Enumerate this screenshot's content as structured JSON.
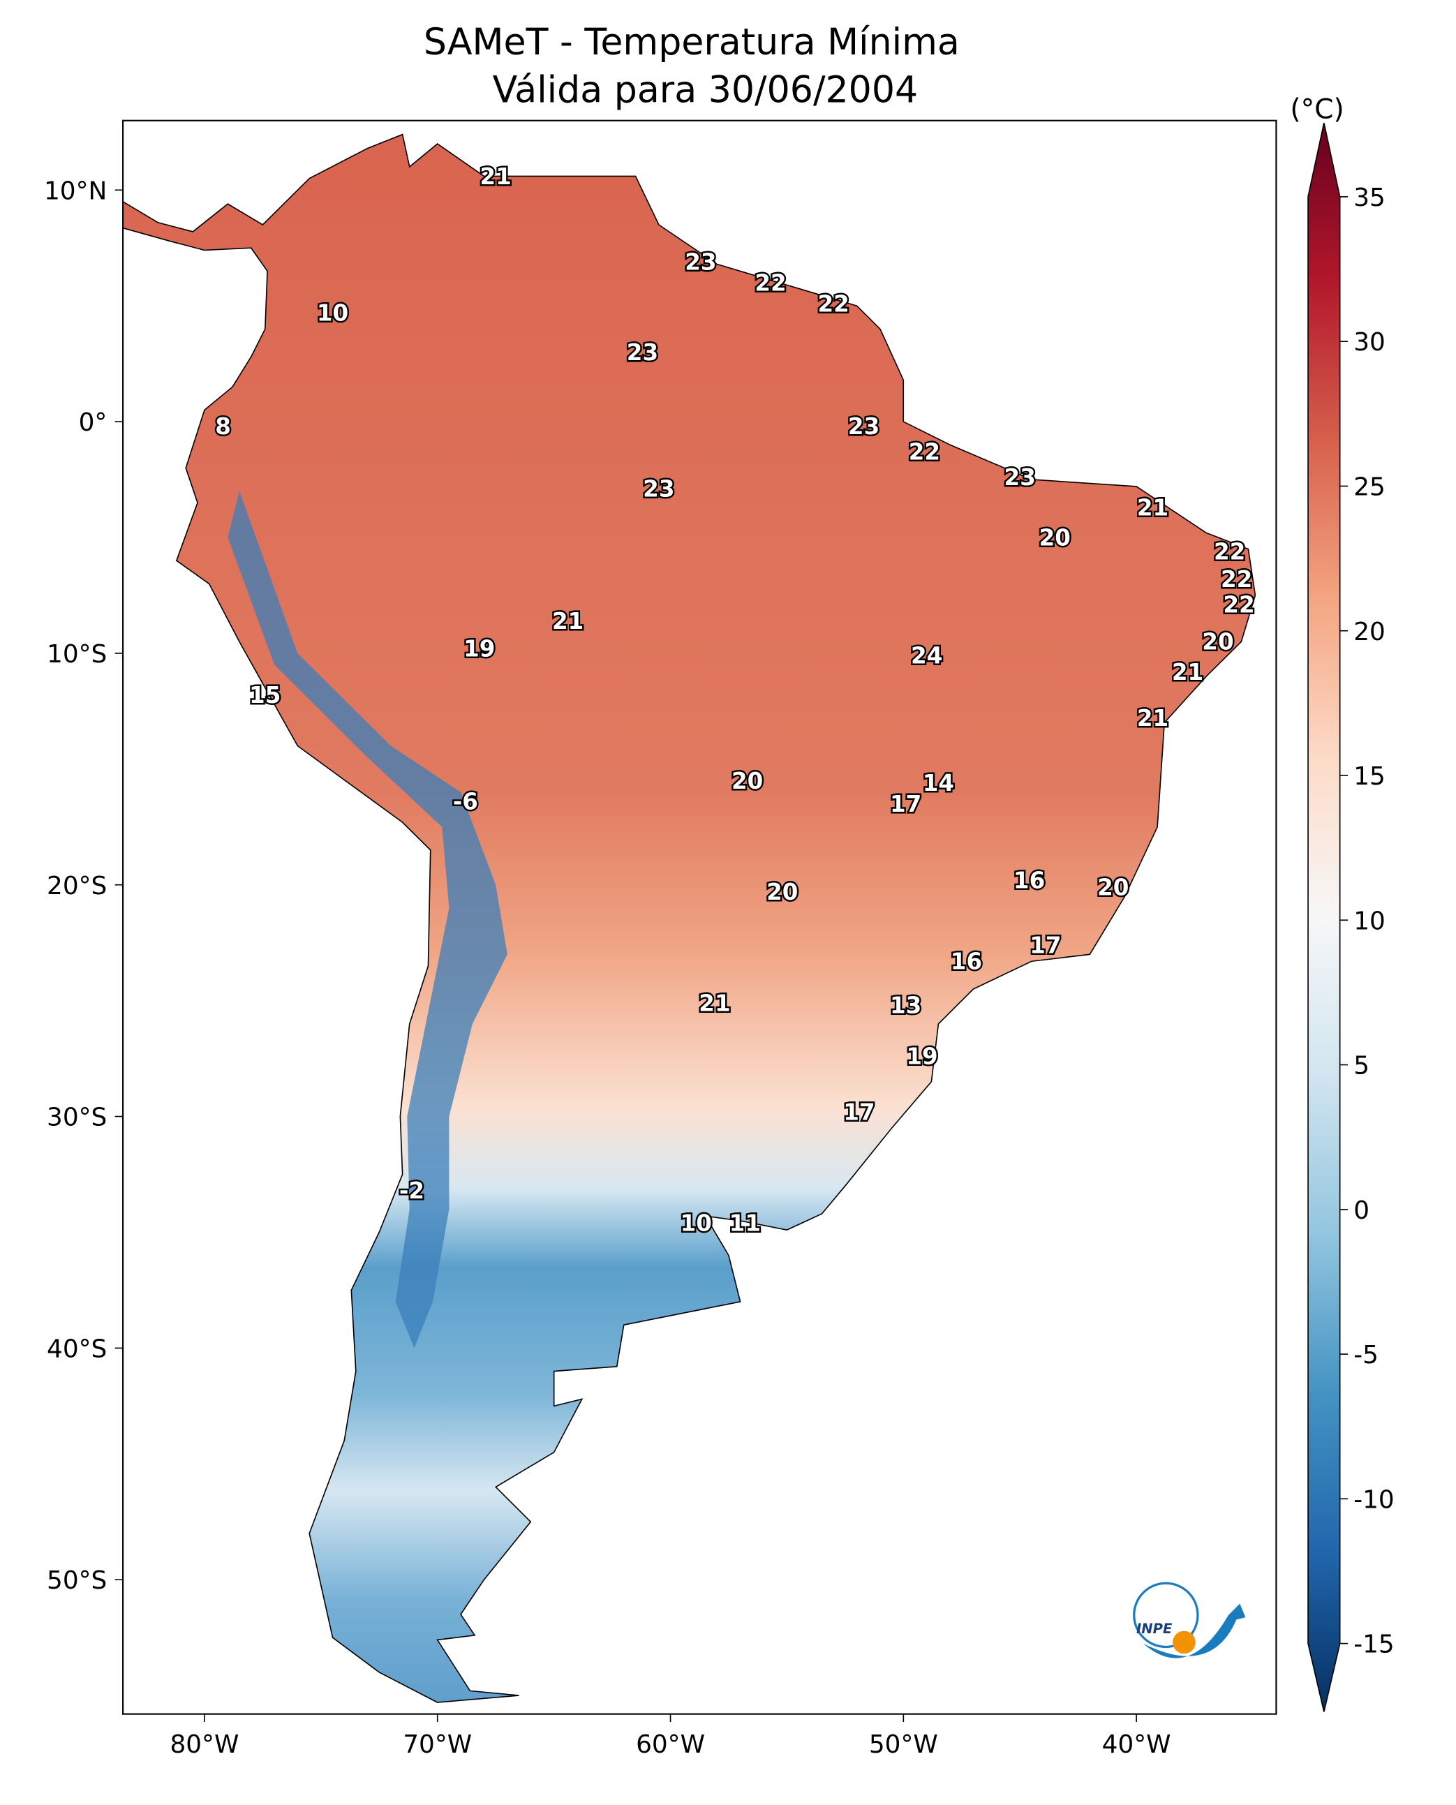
{
  "title": {
    "line1": "SAMeT - Temperatura Mínima",
    "line2": "Válida para 30/06/2004"
  },
  "map": {
    "lon_range": [
      -83.5,
      -34
    ],
    "lat_range": [
      -55.8,
      13
    ],
    "lon_ticks": [
      {
        "value": -80,
        "label": "80°W"
      },
      {
        "value": -70,
        "label": "70°W"
      },
      {
        "value": -60,
        "label": "60°W"
      },
      {
        "value": -50,
        "label": "50°W"
      },
      {
        "value": -40,
        "label": "40°W"
      }
    ],
    "lat_ticks": [
      {
        "value": 10,
        "label": "10°N"
      },
      {
        "value": 0,
        "label": "0°"
      },
      {
        "value": -10,
        "label": "10°S"
      },
      {
        "value": -20,
        "label": "20°S"
      },
      {
        "value": -30,
        "label": "30°S"
      },
      {
        "value": -40,
        "label": "40°S"
      },
      {
        "value": -50,
        "label": "50°S"
      }
    ],
    "labels": [
      {
        "text": "21",
        "lon": -67.5,
        "lat": 10.6
      },
      {
        "text": "10",
        "lon": -74.5,
        "lat": 4.7
      },
      {
        "text": "23",
        "lon": -58.7,
        "lat": 6.9
      },
      {
        "text": "22",
        "lon": -55.7,
        "lat": 6.0
      },
      {
        "text": "22",
        "lon": -53.0,
        "lat": 5.1
      },
      {
        "text": "23",
        "lon": -61.2,
        "lat": 3.0
      },
      {
        "text": "8",
        "lon": -79.2,
        "lat": -0.2
      },
      {
        "text": "23",
        "lon": -51.7,
        "lat": -0.2
      },
      {
        "text": "22",
        "lon": -49.1,
        "lat": -1.3
      },
      {
        "text": "23",
        "lon": -45.0,
        "lat": -2.4
      },
      {
        "text": "23",
        "lon": -60.5,
        "lat": -2.9
      },
      {
        "text": "21",
        "lon": -39.3,
        "lat": -3.7
      },
      {
        "text": "20",
        "lon": -43.5,
        "lat": -5.0
      },
      {
        "text": "22",
        "lon": -36.0,
        "lat": -5.6
      },
      {
        "text": "22",
        "lon": -35.7,
        "lat": -6.8
      },
      {
        "text": "22",
        "lon": -35.6,
        "lat": -7.9
      },
      {
        "text": "21",
        "lon": -64.4,
        "lat": -8.6
      },
      {
        "text": "20",
        "lon": -36.5,
        "lat": -9.5
      },
      {
        "text": "19",
        "lon": -68.2,
        "lat": -9.8
      },
      {
        "text": "24",
        "lon": -49.0,
        "lat": -10.1
      },
      {
        "text": "21",
        "lon": -37.8,
        "lat": -10.8
      },
      {
        "text": "15",
        "lon": -77.4,
        "lat": -11.8
      },
      {
        "text": "21",
        "lon": -39.3,
        "lat": -12.8
      },
      {
        "text": "20",
        "lon": -56.7,
        "lat": -15.5
      },
      {
        "text": "14",
        "lon": -48.5,
        "lat": -15.6
      },
      {
        "text": "17",
        "lon": -49.9,
        "lat": -16.5
      },
      {
        "text": "-6",
        "lon": -68.8,
        "lat": -16.4
      },
      {
        "text": "16",
        "lon": -44.6,
        "lat": -19.8
      },
      {
        "text": "20",
        "lon": -41.0,
        "lat": -20.1
      },
      {
        "text": "20",
        "lon": -55.2,
        "lat": -20.3
      },
      {
        "text": "17",
        "lon": -43.9,
        "lat": -22.6
      },
      {
        "text": "16",
        "lon": -47.3,
        "lat": -23.3
      },
      {
        "text": "21",
        "lon": -58.1,
        "lat": -25.1
      },
      {
        "text": "13",
        "lon": -49.9,
        "lat": -25.2
      },
      {
        "text": "19",
        "lon": -49.2,
        "lat": -27.4
      },
      {
        "text": "17",
        "lon": -51.9,
        "lat": -29.8
      },
      {
        "text": "-2",
        "lon": -71.1,
        "lat": -33.2
      },
      {
        "text": "10",
        "lon": -58.9,
        "lat": -34.6
      },
      {
        "text": "11",
        "lon": -56.8,
        "lat": -34.6
      }
    ]
  },
  "colorbar": {
    "unit": "(°C)",
    "min": -15,
    "max": 35,
    "extend": "both",
    "colormap": "RdBu_r",
    "ticks": [
      "-15",
      "-10",
      "-5",
      "0",
      "5",
      "10",
      "15",
      "20",
      "25",
      "30",
      "35"
    ],
    "colors": [
      "#053061",
      "#2166ac",
      "#4393c3",
      "#92c5de",
      "#d1e5f0",
      "#f7f7f7",
      "#fddbc7",
      "#f4a582",
      "#d6604d",
      "#b2182b",
      "#67001f"
    ]
  },
  "logo": {
    "text": "INPE",
    "colors": {
      "blue": "#1a7bbf",
      "orange": "#f39200"
    }
  }
}
